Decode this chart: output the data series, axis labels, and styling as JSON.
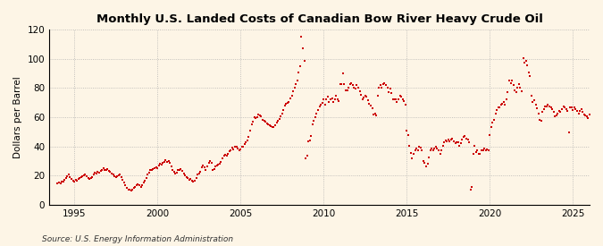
{
  "title": "Monthly U.S. Landed Costs of Canadian Bow River Heavy Crude Oil",
  "ylabel": "Dollars per Barrel",
  "source": "Source: U.S. Energy Information Administration",
  "background_color": "#fdf5e6",
  "marker_color": "#cc0000",
  "grid_color": "#aaaaaa",
  "ylim": [
    0,
    120
  ],
  "yticks": [
    0,
    20,
    40,
    60,
    80,
    100,
    120
  ],
  "xticks": [
    1995,
    2000,
    2005,
    2010,
    2015,
    2020,
    2025
  ],
  "values": [
    14.5,
    15.0,
    14.8,
    15.5,
    16.0,
    17.0,
    18.0,
    19.5,
    20.5,
    19.0,
    17.5,
    16.5,
    16.0,
    17.0,
    16.5,
    17.5,
    18.5,
    19.0,
    19.5,
    20.0,
    20.5,
    19.5,
    18.5,
    17.5,
    18.0,
    19.0,
    20.5,
    22.0,
    21.5,
    22.5,
    22.0,
    23.0,
    24.0,
    25.0,
    24.0,
    23.5,
    24.5,
    23.0,
    22.5,
    21.5,
    20.5,
    19.5,
    19.0,
    19.5,
    20.0,
    20.5,
    19.0,
    17.0,
    15.0,
    13.0,
    11.5,
    10.5,
    10.0,
    9.5,
    10.0,
    11.5,
    12.0,
    13.5,
    14.0,
    13.5,
    12.0,
    13.5,
    15.0,
    16.5,
    18.0,
    20.5,
    22.0,
    23.5,
    24.0,
    24.5,
    25.0,
    25.5,
    25.0,
    27.0,
    28.0,
    27.5,
    28.5,
    29.0,
    30.5,
    29.5,
    30.0,
    28.5,
    26.5,
    24.0,
    22.5,
    21.0,
    22.0,
    23.5,
    24.0,
    24.5,
    23.0,
    21.5,
    20.0,
    19.0,
    18.5,
    17.0,
    17.5,
    16.5,
    15.5,
    16.5,
    18.0,
    20.5,
    21.0,
    22.5,
    25.5,
    27.0,
    25.5,
    24.0,
    26.0,
    28.5,
    30.0,
    28.5,
    24.0,
    24.5,
    26.0,
    27.0,
    27.5,
    28.0,
    29.5,
    31.5,
    33.5,
    34.0,
    33.5,
    35.0,
    36.5,
    37.5,
    39.0,
    38.0,
    39.5,
    40.0,
    38.5,
    37.0,
    38.0,
    39.5,
    40.0,
    41.5,
    42.5,
    44.0,
    46.5,
    51.0,
    55.0,
    57.0,
    60.0,
    59.5,
    60.0,
    62.0,
    61.5,
    60.5,
    58.0,
    57.5,
    57.0,
    55.5,
    55.0,
    54.5,
    54.0,
    53.5,
    53.0,
    54.5,
    56.0,
    57.5,
    58.5,
    60.5,
    62.5,
    65.0,
    68.0,
    69.5,
    70.0,
    70.5,
    73.0,
    75.0,
    78.0,
    80.5,
    83.0,
    85.0,
    90.5,
    95.0,
    115.0,
    107.5,
    98.5,
    32.0,
    33.5,
    43.5,
    44.0,
    47.0,
    55.0,
    57.5,
    60.0,
    62.5,
    65.0,
    67.5,
    68.5,
    70.0,
    72.0,
    68.5,
    72.5,
    74.0,
    70.5,
    72.5,
    73.0,
    70.5,
    72.5,
    74.5,
    72.5,
    71.0,
    82.5,
    83.0,
    90.0,
    83.0,
    78.5,
    78.5,
    80.5,
    82.5,
    83.5,
    82.0,
    80.0,
    79.5,
    82.0,
    80.0,
    78.0,
    75.5,
    72.5,
    73.5,
    75.0,
    74.0,
    71.5,
    69.0,
    68.0,
    66.0,
    62.0,
    62.5,
    61.5,
    74.5,
    80.5,
    82.0,
    80.5,
    82.5,
    83.5,
    82.0,
    80.5,
    77.5,
    79.5,
    76.5,
    72.5,
    72.5,
    72.0,
    70.5,
    72.5,
    74.5,
    74.0,
    72.5,
    71.0,
    68.5,
    50.5,
    47.5,
    40.5,
    35.5,
    32.0,
    35.0,
    37.0,
    38.5,
    37.5,
    39.5,
    39.0,
    37.5,
    30.0,
    28.5,
    26.0,
    28.0,
    32.5,
    37.5,
    38.5,
    37.0,
    38.5,
    40.0,
    38.5,
    37.0,
    35.0,
    37.5,
    40.5,
    42.5,
    44.0,
    43.5,
    44.5,
    43.5,
    44.5,
    45.5,
    43.5,
    42.0,
    43.0,
    42.5,
    40.5,
    42.0,
    44.5,
    46.5,
    47.0,
    45.5,
    44.5,
    43.0,
    10.0,
    12.0,
    35.0,
    40.5,
    36.0,
    37.5,
    34.5,
    35.0,
    37.0,
    37.5,
    38.5,
    37.5,
    38.0,
    37.5,
    47.5,
    53.5,
    56.0,
    58.0,
    62.5,
    65.0,
    66.5,
    67.0,
    68.5,
    69.5,
    70.5,
    68.5,
    72.5,
    77.5,
    85.0,
    83.5,
    85.0,
    82.0,
    78.5,
    77.5,
    80.5,
    82.5,
    80.0,
    78.0,
    100.5,
    97.5,
    98.5,
    95.5,
    90.5,
    88.5,
    75.0,
    70.5,
    71.5,
    68.5,
    66.0,
    62.5,
    58.0,
    57.5,
    63.5,
    65.5,
    67.5,
    67.5,
    68.5,
    67.5,
    66.5,
    65.5,
    63.5,
    60.5,
    61.5,
    62.5,
    64.5,
    63.5,
    65.5,
    67.5,
    67.0,
    65.5,
    64.5,
    49.5,
    66.5,
    67.0,
    65.0,
    66.5,
    65.5,
    64.0,
    62.5,
    64.5,
    65.5,
    63.5,
    62.0,
    61.5,
    60.5,
    59.5,
    62.0
  ],
  "start_year": 1994,
  "start_month": 1,
  "xlim": [
    1993.5,
    2026.0
  ]
}
